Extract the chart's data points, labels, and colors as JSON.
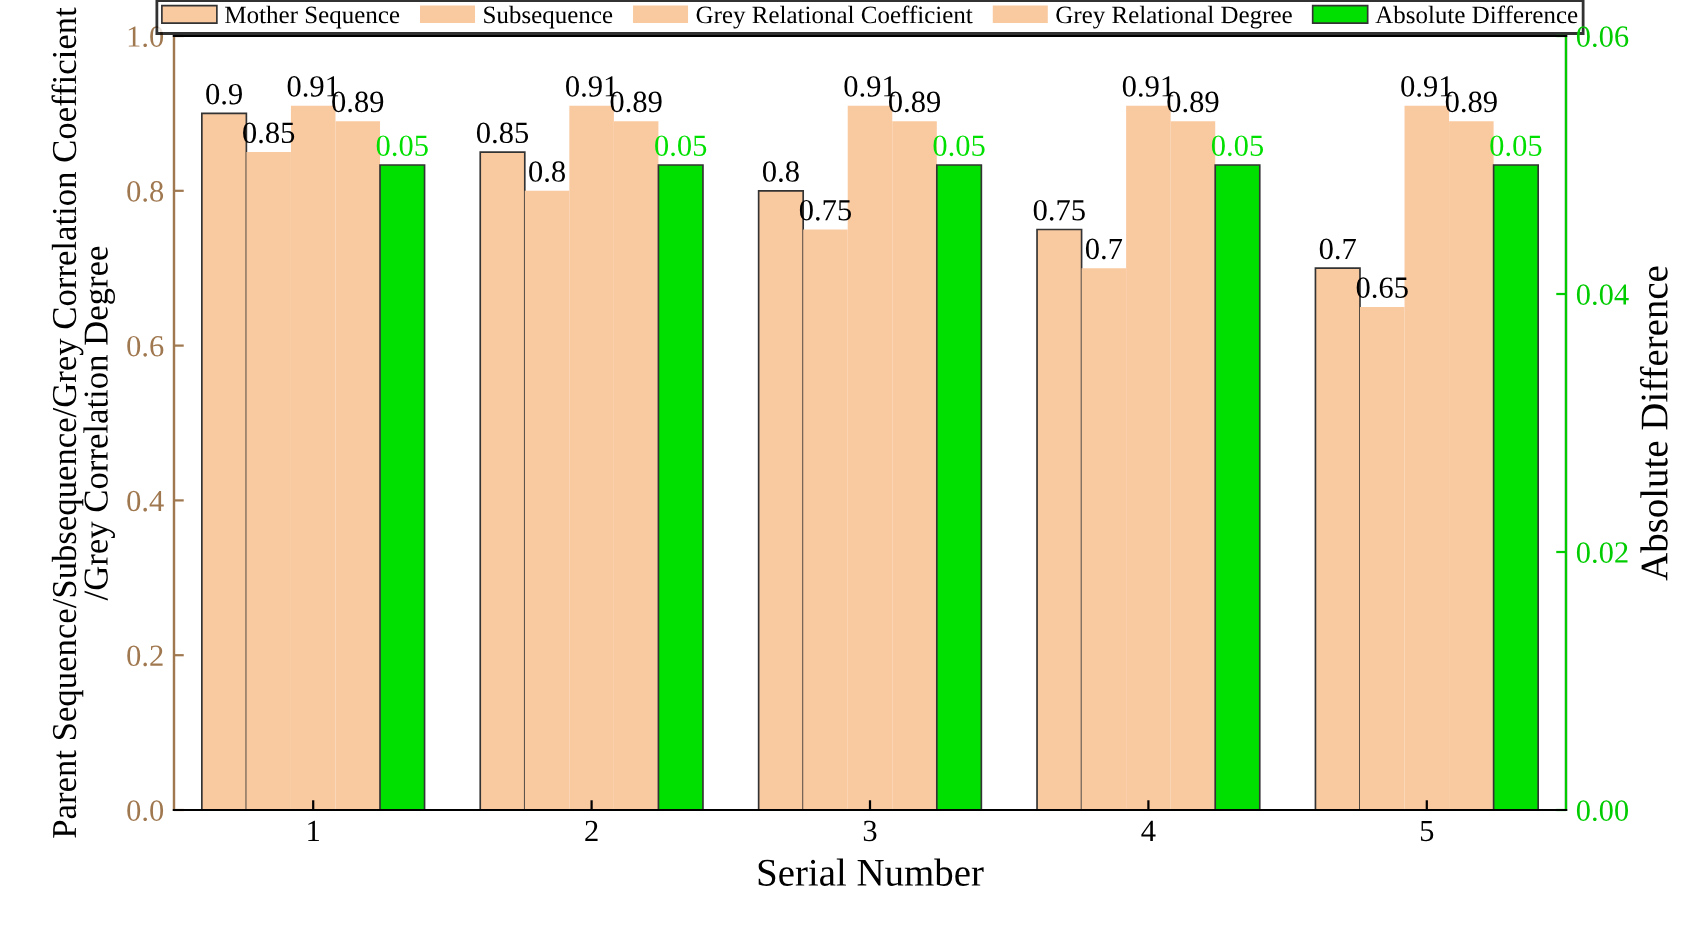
{
  "chart_data": {
    "type": "bar",
    "xlabel": "Serial Number",
    "ylabel": "Parent Sequence/Subsequence/Grey Correlation Coefficient\n/Grey Correlation Degree",
    "y2label": "Absolute Difference",
    "categories": [
      "1",
      "2",
      "3",
      "4",
      "5"
    ],
    "series": [
      {
        "name": "Mother Sequence",
        "color": "#f9c9a0",
        "values": [
          0.9,
          0.85,
          0.8,
          0.75,
          0.7
        ]
      },
      {
        "name": "Subsequence",
        "color": "#f9c9a0",
        "values": [
          0.85,
          0.8,
          0.75,
          0.7,
          0.65
        ]
      },
      {
        "name": "Grey Relational Coefficient",
        "color": "#f9c9a0",
        "values": [
          0.91,
          0.91,
          0.91,
          0.91,
          0.91
        ]
      },
      {
        "name": "Grey Relational Degree",
        "color": "#f9c9a0",
        "values": [
          0.89,
          0.89,
          0.89,
          0.89,
          0.89
        ]
      },
      {
        "name": "Absolute Difference",
        "color": "#00e000",
        "axis": "y2",
        "values": [
          0.05,
          0.05,
          0.05,
          0.05,
          0.05
        ]
      }
    ],
    "ylim": [
      0,
      1.0
    ],
    "yticks": [
      {
        "value": 0,
        "label": "0.0"
      },
      {
        "value": 0.2,
        "label": "0.2"
      },
      {
        "value": 0.4,
        "label": "0.4"
      },
      {
        "value": 0.6,
        "label": "0.6"
      },
      {
        "value": 0.8,
        "label": "0.8"
      },
      {
        "value": 1.0,
        "label": "1.0"
      }
    ],
    "y2lim": [
      0,
      0.06
    ],
    "y2ticks": [
      {
        "value": 0,
        "label": "0.00"
      },
      {
        "value": 0.02,
        "label": "0.02"
      },
      {
        "value": 0.04,
        "label": "0.04"
      },
      {
        "value": 0.06,
        "label": "0.06"
      }
    ],
    "data_labels": true,
    "legend": "top",
    "grid": false
  }
}
